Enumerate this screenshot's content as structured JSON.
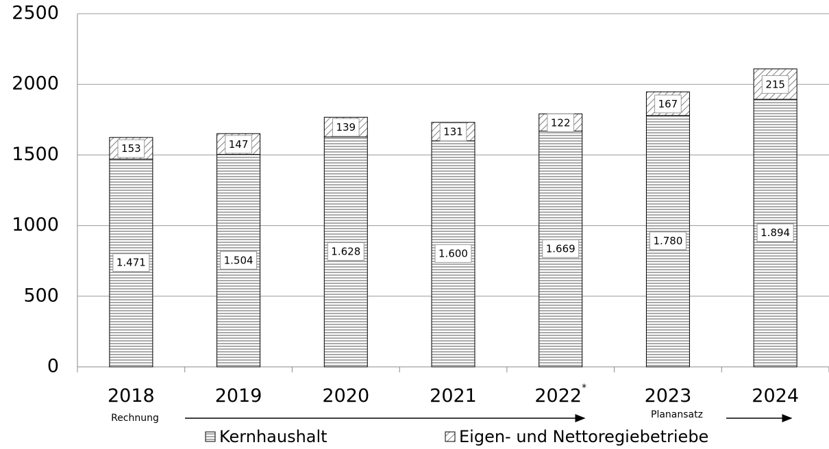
{
  "chart_data": {
    "type": "stacked_bar",
    "categories": [
      "2018",
      "2019",
      "2020",
      "2021",
      "2022",
      "2023",
      "2024"
    ],
    "footnote_mark": "*",
    "annotations": [
      "Rechnung",
      "Planansatz"
    ],
    "series": [
      {
        "name": "Kernhaushalt",
        "color": "#000000",
        "values": [
          1471,
          1504,
          1628,
          1600,
          1669,
          1780,
          1894
        ],
        "value_labels": [
          "1.471",
          "1.504",
          "1.628",
          "1.600",
          "1.669",
          "1.780",
          "1.894"
        ]
      },
      {
        "name": "Eigen- und Nettoregiebetriebe",
        "color": "#000000",
        "values": [
          153,
          147,
          139,
          131,
          122,
          167,
          215
        ]
      }
    ],
    "ylim": [
      0,
      2500
    ],
    "yticks": [
      0,
      500,
      1000,
      1500,
      2000,
      2500
    ],
    "grid": true
  }
}
